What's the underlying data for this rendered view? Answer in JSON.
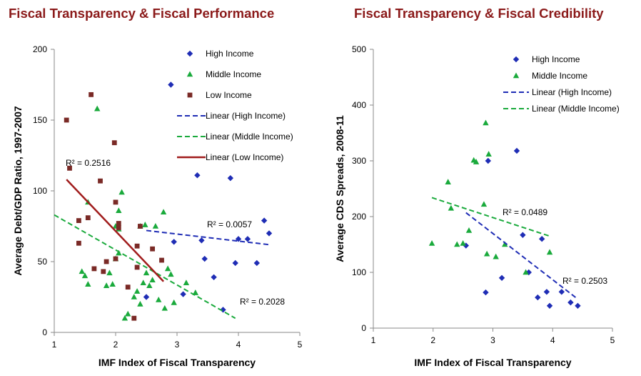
{
  "chart_data": [
    {
      "type": "scatter",
      "title": "Fiscal Transparency & Fiscal Performance",
      "xlabel": "IMF Index of Fiscal Transparency",
      "ylabel": "Average Debt/GDP Ratio, 1997-2007",
      "xlim": [
        1,
        5
      ],
      "ylim": [
        0,
        200
      ],
      "xticks": [
        "1",
        "2",
        "3",
        "4",
        "5"
      ],
      "yticks": [
        "0",
        "50",
        "100",
        "150",
        "200"
      ],
      "grid": false,
      "legend_position": "top-right",
      "colors": {
        "high": "#1f2db5",
        "middle": "#1aaa3c",
        "low": "#7a2a26"
      },
      "series": [
        {
          "name": "High Income",
          "marker": "diamond",
          "color": "#1f2db5",
          "points": [
            [
              2.9,
              175
            ],
            [
              3.33,
              111
            ],
            [
              3.87,
              109
            ],
            [
              2.5,
              25
            ],
            [
              3.1,
              27
            ],
            [
              2.95,
              64
            ],
            [
              3.45,
              52
            ],
            [
              3.6,
              39
            ],
            [
              3.4,
              65
            ],
            [
              3.75,
              16
            ],
            [
              3.95,
              49
            ],
            [
              4.0,
              66
            ],
            [
              4.15,
              66
            ],
            [
              4.3,
              49
            ],
            [
              4.42,
              79
            ],
            [
              4.5,
              70
            ]
          ]
        },
        {
          "name": "Middle Income",
          "marker": "triangle",
          "color": "#1aaa3c",
          "points": [
            [
              1.7,
              158
            ],
            [
              1.55,
              92
            ],
            [
              2.1,
              99
            ],
            [
              2.05,
              86
            ],
            [
              2.78,
              85
            ],
            [
              2.0,
              75
            ],
            [
              2.05,
              73
            ],
            [
              2.4,
              75
            ],
            [
              2.48,
              76
            ],
            [
              2.65,
              75
            ],
            [
              1.45,
              43
            ],
            [
              1.5,
              40
            ],
            [
              1.55,
              34
            ],
            [
              1.85,
              33
            ],
            [
              1.9,
              42
            ],
            [
              1.95,
              34
            ],
            [
              2.0,
              52
            ],
            [
              2.05,
              56
            ],
            [
              2.15,
              10
            ],
            [
              2.2,
              13
            ],
            [
              2.3,
              25
            ],
            [
              2.35,
              29
            ],
            [
              2.4,
              20
            ],
            [
              2.45,
              35
            ],
            [
              2.5,
              42
            ],
            [
              2.55,
              33
            ],
            [
              2.6,
              37
            ],
            [
              2.7,
              23
            ],
            [
              2.8,
              17
            ],
            [
              2.85,
              45
            ],
            [
              2.9,
              41
            ],
            [
              2.95,
              21
            ],
            [
              3.15,
              35
            ],
            [
              3.3,
              28
            ]
          ]
        },
        {
          "name": "Low Income",
          "marker": "square",
          "color": "#7a2a26",
          "points": [
            [
              1.2,
              150
            ],
            [
              1.25,
              116
            ],
            [
              1.6,
              168
            ],
            [
              1.75,
              107
            ],
            [
              1.98,
              134
            ],
            [
              1.4,
              79
            ],
            [
              1.55,
              81
            ],
            [
              1.4,
              63
            ],
            [
              1.65,
              45
            ],
            [
              1.8,
              43
            ],
            [
              1.85,
              50
            ],
            [
              2.0,
              92
            ],
            [
              2.05,
              77
            ],
            [
              2.0,
              52
            ],
            [
              2.05,
              74
            ],
            [
              2.2,
              32
            ],
            [
              2.3,
              10
            ],
            [
              2.35,
              46
            ],
            [
              2.35,
              61
            ],
            [
              2.4,
              75
            ],
            [
              2.6,
              59
            ],
            [
              2.75,
              51
            ]
          ]
        }
      ],
      "trendlines": [
        {
          "name": "Linear (High Income)",
          "style": "dashed",
          "color": "#1f2db5",
          "from": [
            2.5,
            72
          ],
          "to": [
            4.5,
            62
          ],
          "r2_label": "R² = 0.0057"
        },
        {
          "name": "Linear (Middle Income)",
          "style": "dashed",
          "color": "#1aaa3c",
          "from": [
            1.0,
            83
          ],
          "to": [
            3.95,
            10
          ],
          "r2_label": "R² = 0.2028"
        },
        {
          "name": "Linear (Low Income)",
          "style": "solid",
          "color": "#a01c1c",
          "from": [
            1.2,
            108
          ],
          "to": [
            2.78,
            36
          ],
          "r2_label": "R² = 0.2516"
        }
      ]
    },
    {
      "type": "scatter",
      "title": "Fiscal Transparency & Fiscal Credibility",
      "xlabel": "IMF Index of Fiscal Transparency",
      "ylabel": "Average CDS Spreads, 2008-11",
      "xlim": [
        1,
        5
      ],
      "ylim": [
        0,
        500
      ],
      "xticks": [
        "1",
        "2",
        "3",
        "4",
        "5"
      ],
      "yticks": [
        "0",
        "100",
        "200",
        "300",
        "400",
        "500"
      ],
      "grid": false,
      "legend_position": "top-right",
      "colors": {
        "high": "#1f2db5",
        "middle": "#1aaa3c"
      },
      "series": [
        {
          "name": "High Income",
          "marker": "diamond",
          "color": "#1f2db5",
          "points": [
            [
              2.92,
              300
            ],
            [
              3.4,
              318
            ],
            [
              2.55,
              148
            ],
            [
              3.5,
              167
            ],
            [
              3.82,
              160
            ],
            [
              2.88,
              64
            ],
            [
              3.15,
              90
            ],
            [
              3.6,
              100
            ],
            [
              3.75,
              55
            ],
            [
              3.9,
              65
            ],
            [
              3.95,
              40
            ],
            [
              4.15,
              65
            ],
            [
              4.3,
              46
            ],
            [
              4.42,
              40
            ]
          ]
        },
        {
          "name": "Middle Income",
          "marker": "triangle",
          "color": "#1aaa3c",
          "points": [
            [
              1.98,
              152
            ],
            [
              2.25,
              262
            ],
            [
              2.3,
              215
            ],
            [
              2.4,
              150
            ],
            [
              2.5,
              152
            ],
            [
              2.6,
              175
            ],
            [
              2.68,
              301
            ],
            [
              2.72,
              298
            ],
            [
              2.85,
              222
            ],
            [
              2.88,
              368
            ],
            [
              2.93,
              312
            ],
            [
              2.9,
              133
            ],
            [
              3.05,
              128
            ],
            [
              3.2,
              150
            ],
            [
              3.55,
              100
            ],
            [
              3.95,
              136
            ]
          ]
        }
      ],
      "trendlines": [
        {
          "name": "Linear (High Income)",
          "style": "dashed",
          "color": "#1f2db5",
          "from": [
            2.55,
            207
          ],
          "to": [
            4.42,
            52
          ],
          "r2_label": "R² = 0.2503"
        },
        {
          "name": "Linear (Middle Income)",
          "style": "dashed",
          "color": "#1aaa3c",
          "from": [
            1.98,
            234
          ],
          "to": [
            3.95,
            165
          ],
          "r2_label": "R² = 0.0489"
        }
      ]
    }
  ]
}
